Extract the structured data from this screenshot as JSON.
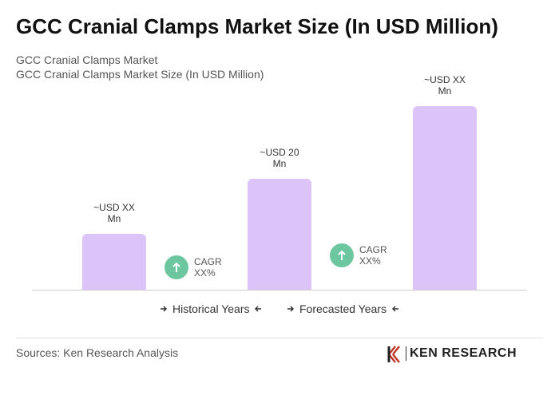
{
  "chart_data": {
    "type": "bar",
    "title": "GCC Cranial Clamps Market Size (In USD Million)",
    "subtitle": [
      "GCC Cranial Clamps Market",
      "GCC Cranial Clamps Market Size (In USD Million)"
    ],
    "values": [
      10,
      20,
      33
    ],
    "value_labels": [
      "~USD XX Mn",
      "~USD 20 Mn",
      "~USD XX Mn"
    ],
    "color": "#dcc3f8",
    "annotations": [
      {
        "text": "CAGR XX%",
        "color": "#6cc7a0"
      },
      {
        "text": "CAGR XX%",
        "color": "#6cc7a0"
      }
    ],
    "legend": [
      "Historical Years",
      "Forecasted Years"
    ],
    "source": "Sources: Ken Research Analysis",
    "logo": "KEN RESEARCH"
  }
}
